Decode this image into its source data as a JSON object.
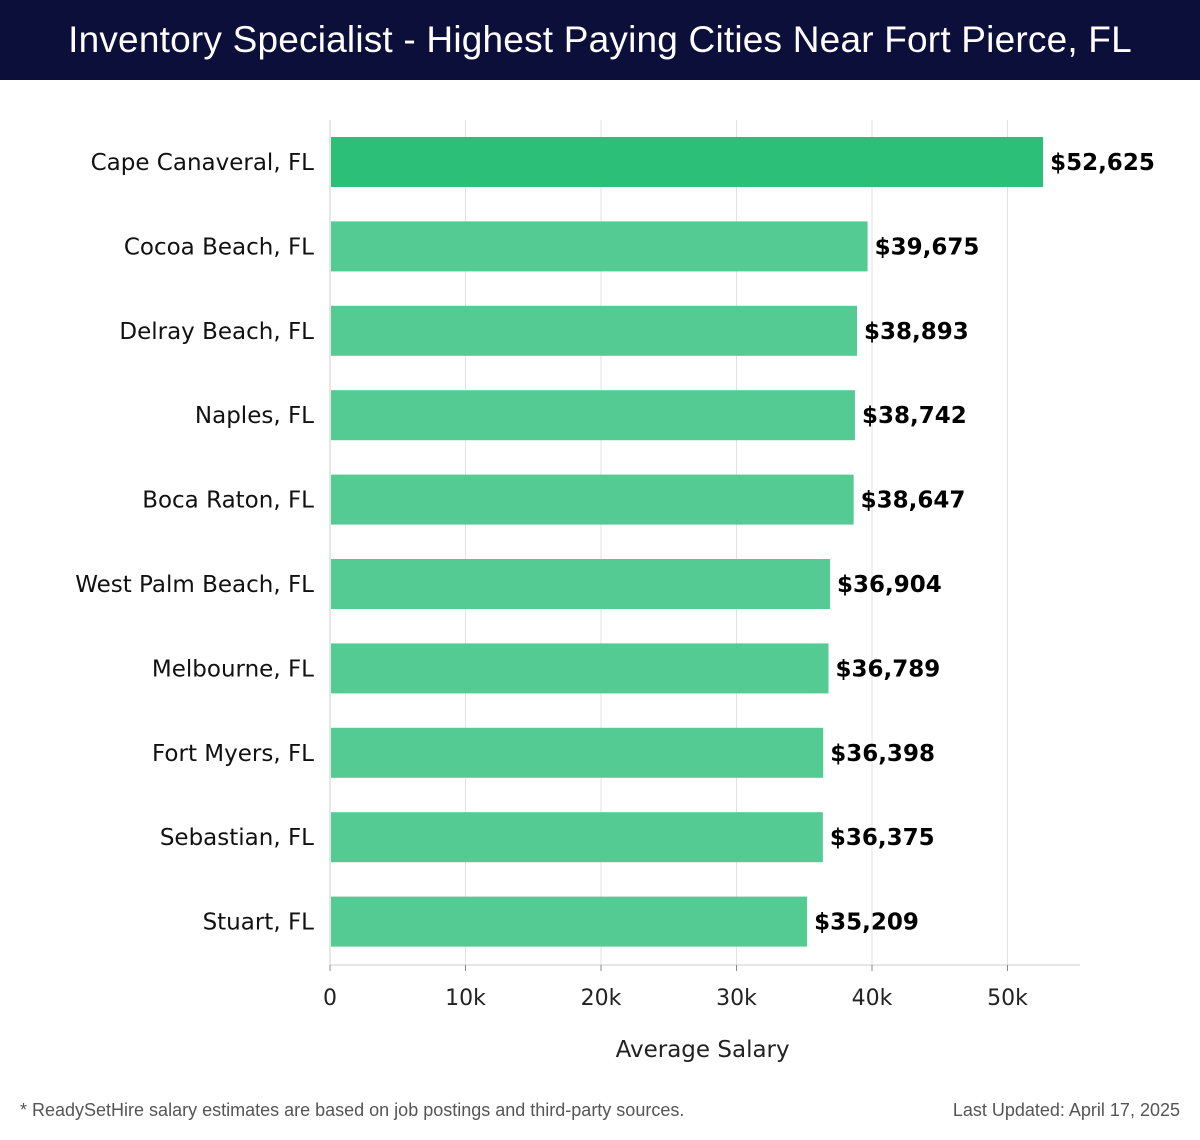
{
  "header": {
    "title": "Inventory Specialist - Highest Paying Cities Near Fort Pierce, FL"
  },
  "chart_data": {
    "type": "bar",
    "orientation": "horizontal",
    "title": "Inventory Specialist - Highest Paying Cities Near Fort Pierce, FL",
    "xlabel": "Average Salary",
    "ylabel": "",
    "xlim": [
      0,
      55000
    ],
    "xticks": [
      0,
      10000,
      20000,
      30000,
      40000,
      50000
    ],
    "xtick_labels": [
      "0",
      "10k",
      "20k",
      "30k",
      "40k",
      "50k"
    ],
    "grid": "vertical",
    "categories": [
      "Cape Canaveral, FL",
      "Cocoa Beach, FL",
      "Delray Beach, FL",
      "Naples, FL",
      "Boca Raton, FL",
      "West Palm Beach, FL",
      "Melbourne, FL",
      "Fort Myers, FL",
      "Sebastian, FL",
      "Stuart, FL"
    ],
    "values": [
      52625,
      39675,
      38893,
      38742,
      38647,
      36904,
      36789,
      36398,
      36375,
      35209
    ],
    "value_labels": [
      "$52,625",
      "$39,675",
      "$38,893",
      "$38,742",
      "$38,647",
      "$36,904",
      "$36,789",
      "$36,398",
      "$36,375",
      "$35,209"
    ],
    "colors": {
      "highlight": "#2bbf78",
      "bar": "#55cb94",
      "grid": "#e2e2e2",
      "axis": "#cccccc"
    }
  },
  "footer": {
    "note": "* ReadySetHire salary estimates are based on job postings and third-party sources.",
    "updated": "Last Updated: April 17, 2025"
  }
}
